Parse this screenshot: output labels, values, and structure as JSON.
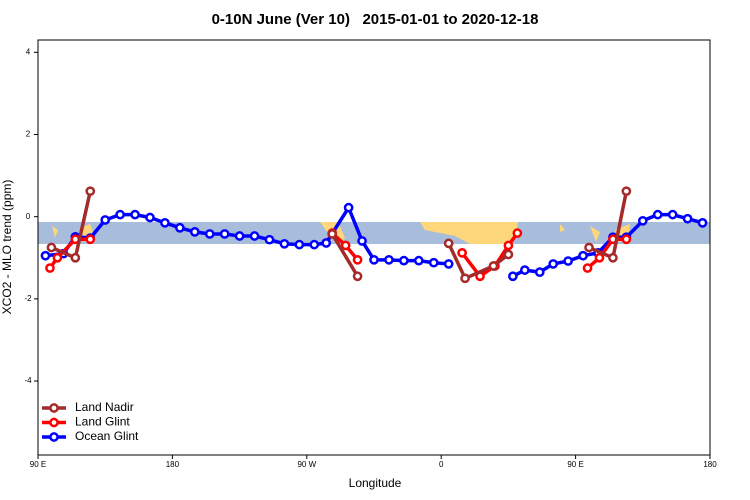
{
  "chart_data": {
    "type": "line",
    "title": "0-10N June (Ver 10)   2015-01-01 to 2020-12-18",
    "x_label": "Longitude",
    "y_label": "XCO2 - MLO trend (ppm)",
    "xlim": [
      90,
      540
    ],
    "xticks": [
      {
        "value": 90,
        "label": "90 E"
      },
      180,
      {
        "value": 270,
        "label": "90 W"
      },
      {
        "value": 360,
        "label": "0"
      },
      {
        "value": 450,
        "label": "90 E"
      },
      {
        "value": 540,
        "label": "180"
      }
    ],
    "ylim": [
      -5.8,
      4.3
    ],
    "yticks": [
      -4,
      -2,
      0,
      2,
      4
    ],
    "legend": "bottom-left",
    "series": [
      {
        "name": "Land Nadir",
        "color": "#a52a2a",
        "x": [
          99,
          115,
          125,
          null,
          287,
          304,
          null,
          365,
          376,
          395,
          405,
          null,
          459,
          475,
          484
        ],
        "values": [
          -0.75,
          -1.0,
          0.62,
          null,
          -0.42,
          -1.45,
          null,
          -0.65,
          -1.5,
          -1.2,
          -0.92,
          null,
          -0.75,
          -1.0,
          0.62
        ]
      },
      {
        "name": "Land Glint",
        "color": "#ff0000",
        "x": [
          98,
          103,
          115,
          125,
          null,
          287,
          296,
          304,
          null,
          374,
          386,
          396,
          405,
          411,
          null,
          458,
          466,
          475,
          484
        ],
        "values": [
          -1.25,
          -1.0,
          -0.55,
          -0.55,
          null,
          -0.4,
          -0.7,
          -1.05,
          null,
          -0.88,
          -1.45,
          -1.2,
          -0.7,
          -0.4,
          null,
          -1.25,
          -1.0,
          -0.55,
          -0.55
        ]
      },
      {
        "name": "Ocean Glint",
        "color": "#0000ff",
        "x": [
          95,
          107,
          115,
          125,
          135,
          145,
          155,
          165,
          175,
          185,
          195,
          205,
          215,
          225,
          235,
          245,
          255,
          265,
          275,
          283,
          298,
          307,
          315,
          325,
          335,
          345,
          355,
          365,
          null,
          408,
          416,
          426,
          435,
          445,
          455,
          465,
          475,
          484,
          495,
          505,
          515,
          525,
          535
        ],
        "values": [
          -0.95,
          -0.9,
          -0.49,
          -0.52,
          -0.08,
          0.05,
          0.05,
          -0.02,
          -0.15,
          -0.27,
          -0.37,
          -0.42,
          -0.42,
          -0.47,
          -0.47,
          -0.56,
          -0.66,
          -0.68,
          -0.68,
          -0.64,
          0.22,
          -0.59,
          -1.05,
          -1.05,
          -1.07,
          -1.07,
          -1.12,
          -1.15,
          null,
          -1.45,
          -1.3,
          -1.35,
          -1.15,
          -1.08,
          -0.95,
          -0.88,
          -0.5,
          -0.5,
          -0.1,
          0.05,
          0.05,
          -0.05,
          -0.15
        ]
      }
    ]
  }
}
